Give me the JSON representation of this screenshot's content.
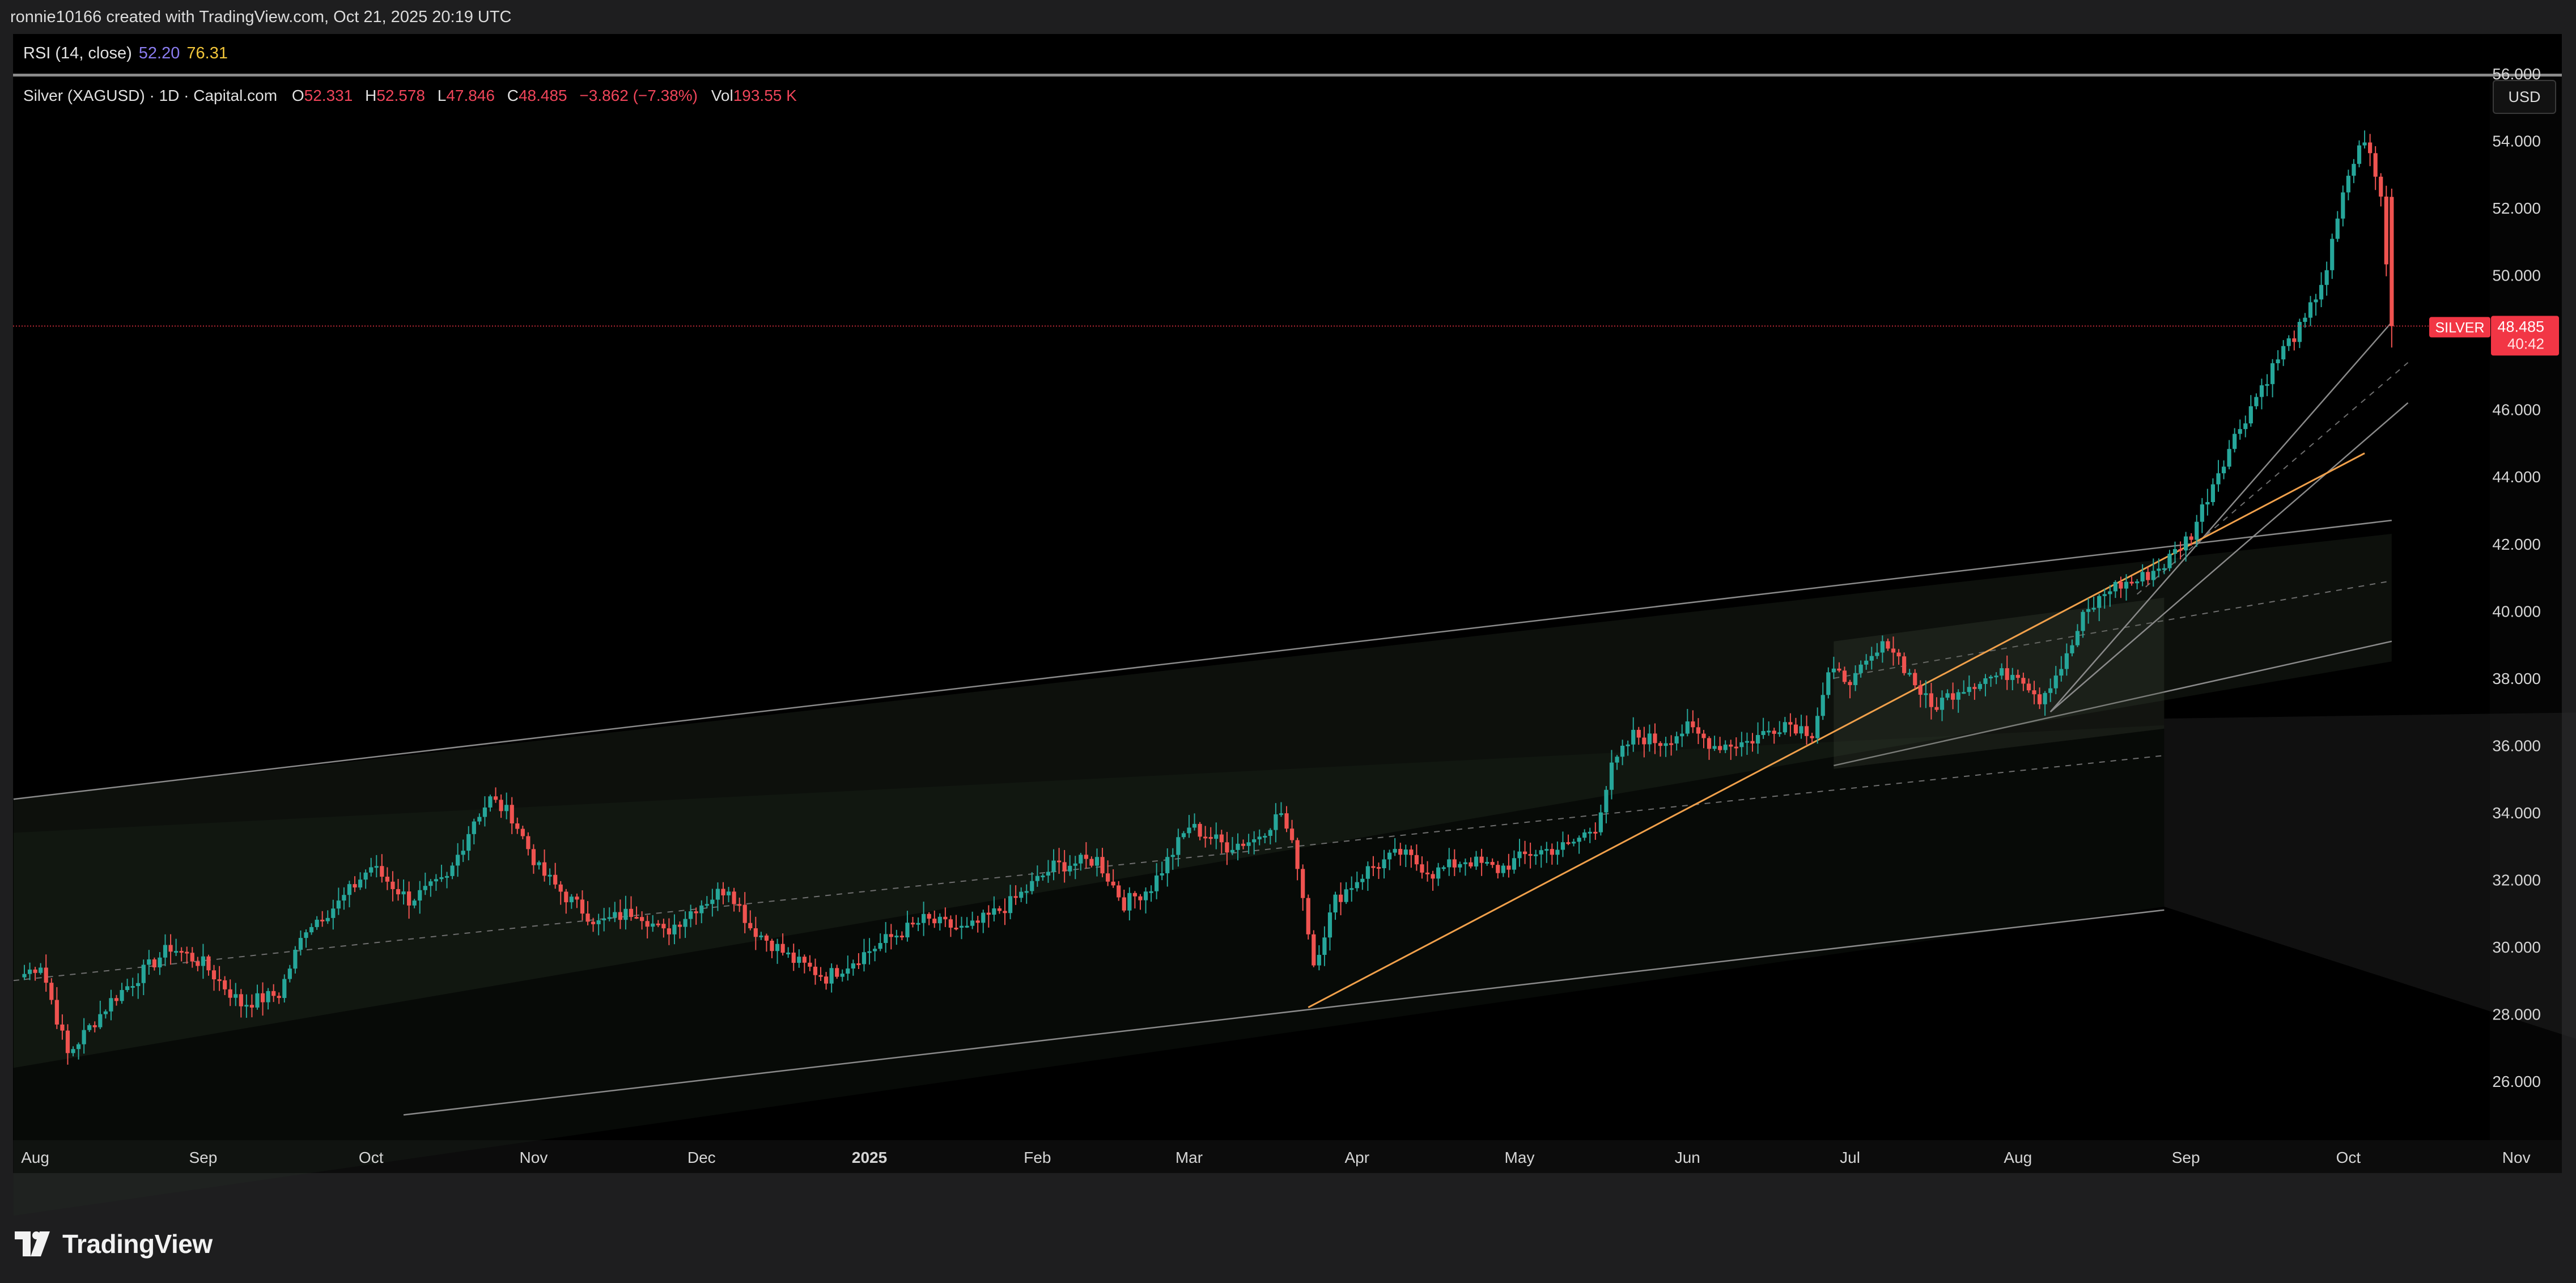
{
  "header": {
    "attribution": "ronnie10166 created with TradingView.com, Oct 21, 2025 20:19 UTC"
  },
  "rsi": {
    "label": "RSI (14, close)",
    "value1": "52.20",
    "value2": "76.31"
  },
  "legend": {
    "symbol": "Silver (XAGUSD) · 1D · Capital.com",
    "open_label": "O",
    "open": "52.331",
    "high_label": "H",
    "high": "52.578",
    "low_label": "L",
    "low": "47.846",
    "close_label": "C",
    "close": "48.485",
    "change": "−3.862 (−7.38%)",
    "vol_label": "Vol",
    "vol": "193.55 K"
  },
  "currency_button": "USD",
  "price_tag": {
    "name": "SILVER",
    "price": "48.485",
    "countdown": "40:42"
  },
  "footer": {
    "brand": "TradingView"
  },
  "colors": {
    "up": "#26a69a",
    "down": "#ef5350",
    "trendline": "#f0a04b",
    "price_line": "#f23645",
    "channel": "#8a8a8a"
  },
  "chart_data": {
    "type": "candlestick",
    "symbol": "Silver (XAGUSD)",
    "interval": "1D",
    "ylim": [
      25,
      57
    ],
    "y_ticks": [
      "56.000",
      "54.000",
      "52.000",
      "50.000",
      "48.000",
      "46.000",
      "44.000",
      "42.000",
      "40.000",
      "38.000",
      "36.000",
      "34.000",
      "32.000",
      "30.000",
      "28.000",
      "26.000"
    ],
    "x_ticks": [
      "Aug",
      "Sep",
      "Oct",
      "Nov",
      "Dec",
      "2025",
      "Feb",
      "Mar",
      "Apr",
      "May",
      "Jun",
      "Jul",
      "Aug",
      "Sep",
      "Oct",
      "Nov"
    ],
    "anchors": [
      {
        "d": 0,
        "v": 29.2
      },
      {
        "d": 3,
        "v": 29.5
      },
      {
        "d": 8,
        "v": 26.8
      },
      {
        "d": 16,
        "v": 28.4
      },
      {
        "d": 27,
        "v": 30.0
      },
      {
        "d": 33,
        "v": 29.5
      },
      {
        "d": 40,
        "v": 28.3
      },
      {
        "d": 47,
        "v": 28.6
      },
      {
        "d": 52,
        "v": 30.6
      },
      {
        "d": 58,
        "v": 31.3
      },
      {
        "d": 64,
        "v": 32.4
      },
      {
        "d": 71,
        "v": 31.4
      },
      {
        "d": 78,
        "v": 32.0
      },
      {
        "d": 83,
        "v": 33.8
      },
      {
        "d": 86,
        "v": 34.4
      },
      {
        "d": 90,
        "v": 33.9
      },
      {
        "d": 95,
        "v": 32.3
      },
      {
        "d": 100,
        "v": 31.5
      },
      {
        "d": 106,
        "v": 30.7
      },
      {
        "d": 113,
        "v": 31.1
      },
      {
        "d": 118,
        "v": 30.4
      },
      {
        "d": 124,
        "v": 31.2
      },
      {
        "d": 130,
        "v": 31.8
      },
      {
        "d": 134,
        "v": 30.6
      },
      {
        "d": 142,
        "v": 29.6
      },
      {
        "d": 148,
        "v": 29.1
      },
      {
        "d": 152,
        "v": 29.5
      },
      {
        "d": 159,
        "v": 30.2
      },
      {
        "d": 166,
        "v": 30.8
      },
      {
        "d": 174,
        "v": 30.5
      },
      {
        "d": 182,
        "v": 31.3
      },
      {
        "d": 190,
        "v": 32.4
      },
      {
        "d": 198,
        "v": 32.6
      },
      {
        "d": 203,
        "v": 31.3
      },
      {
        "d": 208,
        "v": 31.8
      },
      {
        "d": 215,
        "v": 33.6
      },
      {
        "d": 222,
        "v": 33.0
      },
      {
        "d": 227,
        "v": 33.2
      },
      {
        "d": 232,
        "v": 34.0
      },
      {
        "d": 235,
        "v": 32.5
      },
      {
        "d": 238,
        "v": 29.5
      },
      {
        "d": 242,
        "v": 31.4
      },
      {
        "d": 248,
        "v": 32.3
      },
      {
        "d": 254,
        "v": 32.8
      },
      {
        "d": 260,
        "v": 32.2
      },
      {
        "d": 266,
        "v": 32.6
      },
      {
        "d": 272,
        "v": 32.3
      },
      {
        "d": 278,
        "v": 32.8
      },
      {
        "d": 285,
        "v": 33.0
      },
      {
        "d": 290,
        "v": 33.6
      },
      {
        "d": 293,
        "v": 35.3
      },
      {
        "d": 297,
        "v": 36.3
      },
      {
        "d": 302,
        "v": 36.1
      },
      {
        "d": 307,
        "v": 36.5
      },
      {
        "d": 312,
        "v": 36.0
      },
      {
        "d": 318,
        "v": 36.1
      },
      {
        "d": 325,
        "v": 36.7
      },
      {
        "d": 330,
        "v": 36.4
      },
      {
        "d": 333,
        "v": 38.1
      },
      {
        "d": 338,
        "v": 38.0
      },
      {
        "d": 344,
        "v": 39.1
      },
      {
        "d": 348,
        "v": 38.1
      },
      {
        "d": 352,
        "v": 37.1
      },
      {
        "d": 357,
        "v": 37.7
      },
      {
        "d": 362,
        "v": 38.0
      },
      {
        "d": 368,
        "v": 38.2
      },
      {
        "d": 372,
        "v": 37.4
      },
      {
        "d": 377,
        "v": 38.6
      },
      {
        "d": 380,
        "v": 39.8
      },
      {
        "d": 385,
        "v": 40.7
      },
      {
        "d": 390,
        "v": 40.9
      },
      {
        "d": 395,
        "v": 41.4
      },
      {
        "d": 400,
        "v": 42.3
      },
      {
        "d": 405,
        "v": 44.2
      },
      {
        "d": 409,
        "v": 45.5
      },
      {
        "d": 413,
        "v": 46.7
      },
      {
        "d": 417,
        "v": 47.8
      },
      {
        "d": 421,
        "v": 48.6
      },
      {
        "d": 425,
        "v": 50.2
      },
      {
        "d": 429,
        "v": 53.0
      },
      {
        "d": 432,
        "v": 54.1
      },
      {
        "d": 435,
        "v": 52.3
      },
      {
        "d": 437,
        "v": 48.485
      }
    ]
  }
}
